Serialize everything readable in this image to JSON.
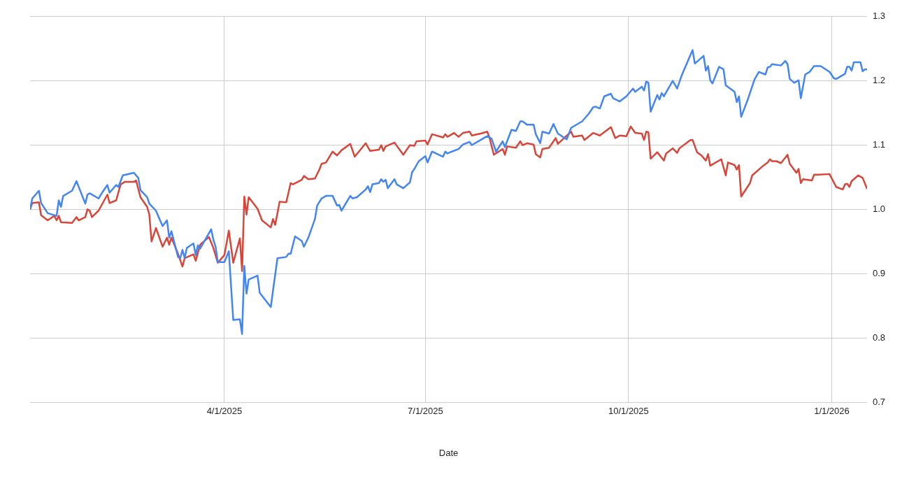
{
  "chart_data": {
    "type": "line",
    "xlabel": "Date",
    "xlim": [
      "2025-01-03",
      "2026-01-17"
    ],
    "xticks": [
      {
        "value": "2025-04-01",
        "label": "4/1/2025"
      },
      {
        "value": "2025-07-01",
        "label": "7/1/2025"
      },
      {
        "value": "2025-10-01",
        "label": "10/1/2025"
      },
      {
        "value": "2026-01-01",
        "label": "1/1/2026"
      }
    ],
    "ylim": [
      0.7,
      1.3
    ],
    "yticks": [
      0.7,
      0.8,
      0.9,
      {
        "value": 1.0,
        "label": "1.0"
      },
      1.1,
      1.2,
      1.3
    ],
    "grid": true,
    "legend": false,
    "marker": "none",
    "series": [
      {
        "color": "#4285f4",
        "x": [
          "2025-01-03",
          "2025-01-04",
          "2025-01-07",
          "2025-01-08",
          "2025-01-11",
          "2025-01-15",
          "2025-01-16",
          "2025-01-17",
          "2025-01-18",
          "2025-01-22",
          "2025-01-24",
          "2025-01-28",
          "2025-01-29",
          "2025-01-30",
          "2025-02-03",
          "2025-02-05",
          "2025-02-07",
          "2025-02-08",
          "2025-02-11",
          "2025-02-12",
          "2025-02-14",
          "2025-02-19",
          "2025-02-21",
          "2025-02-22",
          "2025-02-25",
          "2025-02-26",
          "2025-03-01",
          "2025-03-04",
          "2025-03-06",
          "2025-03-07",
          "2025-03-08",
          "2025-03-11",
          "2025-03-12",
          "2025-03-13",
          "2025-03-14",
          "2025-03-15",
          "2025-03-18",
          "2025-03-19",
          "2025-03-20",
          "2025-03-21",
          "2025-03-26",
          "2025-03-27",
          "2025-03-28",
          "2025-03-29",
          "2025-04-01",
          "2025-04-03",
          "2025-04-05",
          "2025-04-08",
          "2025-04-09",
          "2025-04-10",
          "2025-04-11",
          "2025-04-12",
          "2025-04-16",
          "2025-04-17",
          "2025-04-22",
          "2025-04-25",
          "2025-04-29",
          "2025-04-30",
          "2025-05-01",
          "2025-05-03",
          "2025-05-06",
          "2025-05-07",
          "2025-05-09",
          "2025-05-12",
          "2025-05-13",
          "2025-05-15",
          "2025-05-17",
          "2025-05-20",
          "2025-05-22",
          "2025-05-23",
          "2025-05-24",
          "2025-05-28",
          "2025-05-29",
          "2025-05-31",
          "2025-06-04",
          "2025-06-05",
          "2025-06-06",
          "2025-06-07",
          "2025-06-10",
          "2025-06-11",
          "2025-06-12",
          "2025-06-13",
          "2025-06-14",
          "2025-06-17",
          "2025-06-18",
          "2025-06-21",
          "2025-06-24",
          "2025-06-25",
          "2025-06-26",
          "2025-06-28",
          "2025-07-01",
          "2025-07-02",
          "2025-07-04",
          "2025-07-09",
          "2025-07-10",
          "2025-07-11",
          "2025-07-13",
          "2025-07-16",
          "2025-07-18",
          "2025-07-21",
          "2025-07-22",
          "2025-07-26",
          "2025-07-29",
          "2025-07-31",
          "2025-08-02",
          "2025-08-05",
          "2025-08-06",
          "2025-08-09",
          "2025-08-11",
          "2025-08-13",
          "2025-08-14",
          "2025-08-16",
          "2025-08-19",
          "2025-08-20",
          "2025-08-22",
          "2025-08-23",
          "2025-08-26",
          "2025-08-28",
          "2025-08-30",
          "2025-09-03",
          "2025-09-05",
          "2025-09-10",
          "2025-09-13",
          "2025-09-15",
          "2025-09-16",
          "2025-09-18",
          "2025-09-20",
          "2025-09-23",
          "2025-09-24",
          "2025-09-27",
          "2025-09-30",
          "2025-10-03",
          "2025-10-04",
          "2025-10-07",
          "2025-10-08",
          "2025-10-09",
          "2025-10-10",
          "2025-10-11",
          "2025-10-14",
          "2025-10-15",
          "2025-10-16",
          "2025-10-17",
          "2025-10-21",
          "2025-10-23",
          "2025-10-25",
          "2025-10-30",
          "2025-10-31",
          "2025-11-04",
          "2025-11-05",
          "2025-11-06",
          "2025-11-07",
          "2025-11-08",
          "2025-11-11",
          "2025-11-13",
          "2025-11-14",
          "2025-11-18",
          "2025-11-19",
          "2025-11-20",
          "2025-11-21",
          "2025-11-24",
          "2025-11-27",
          "2025-11-29",
          "2025-12-02",
          "2025-12-03",
          "2025-12-04",
          "2025-12-05",
          "2025-12-09",
          "2025-12-11",
          "2025-12-12",
          "2025-12-13",
          "2025-12-15",
          "2025-12-17",
          "2025-12-18",
          "2025-12-20",
          "2025-12-22",
          "2025-12-24",
          "2025-12-27",
          "2025-12-31",
          "2026-01-02",
          "2026-01-03",
          "2026-01-07",
          "2026-01-08",
          "2026-01-09",
          "2026-01-10",
          "2026-01-11",
          "2026-01-14",
          "2026-01-15",
          "2026-01-16",
          "2026-01-17"
        ],
        "values": [
          1.0,
          1.017,
          1.029,
          1.01,
          0.994,
          0.99,
          1.014,
          1.004,
          1.021,
          1.029,
          1.044,
          1.009,
          1.023,
          1.025,
          1.017,
          1.028,
          1.038,
          1.026,
          1.038,
          1.035,
          1.053,
          1.057,
          1.049,
          1.03,
          1.019,
          1.009,
          0.998,
          0.974,
          0.983,
          0.956,
          0.966,
          0.926,
          0.924,
          0.937,
          0.924,
          0.94,
          0.947,
          0.929,
          0.944,
          0.939,
          0.969,
          0.953,
          0.942,
          0.918,
          0.918,
          0.935,
          0.828,
          0.829,
          0.806,
          0.912,
          0.869,
          0.891,
          0.897,
          0.87,
          0.848,
          0.924,
          0.926,
          0.931,
          0.931,
          0.958,
          0.951,
          0.942,
          0.956,
          0.985,
          1.006,
          1.017,
          1.021,
          1.021,
          1.006,
          1.007,
          0.998,
          1.021,
          1.017,
          1.019,
          1.031,
          1.036,
          1.027,
          1.039,
          1.041,
          1.047,
          1.043,
          1.046,
          1.033,
          1.047,
          1.039,
          1.033,
          1.042,
          1.058,
          1.063,
          1.075,
          1.083,
          1.073,
          1.09,
          1.082,
          1.09,
          1.087,
          1.09,
          1.094,
          1.101,
          1.105,
          1.1,
          1.108,
          1.114,
          1.11,
          1.09,
          1.106,
          1.097,
          1.124,
          1.122,
          1.137,
          1.137,
          1.132,
          1.132,
          1.117,
          1.103,
          1.121,
          1.118,
          1.133,
          1.118,
          1.109,
          1.127,
          1.137,
          1.149,
          1.159,
          1.16,
          1.157,
          1.176,
          1.18,
          1.173,
          1.168,
          1.176,
          1.188,
          1.183,
          1.191,
          1.185,
          1.199,
          1.197,
          1.152,
          1.178,
          1.171,
          1.181,
          1.176,
          1.2,
          1.188,
          1.208,
          1.248,
          1.227,
          1.239,
          1.216,
          1.223,
          1.201,
          1.196,
          1.222,
          1.218,
          1.193,
          1.183,
          1.167,
          1.176,
          1.144,
          1.171,
          1.202,
          1.214,
          1.21,
          1.221,
          1.222,
          1.226,
          1.224,
          1.231,
          1.226,
          1.203,
          1.197,
          1.201,
          1.173,
          1.21,
          1.214,
          1.223,
          1.223,
          1.214,
          1.204,
          1.203,
          1.211,
          1.222,
          1.222,
          1.216,
          1.229,
          1.229,
          1.215,
          1.218,
          1.218
        ]
      },
      {
        "color": "#db4437",
        "x": [
          "2025-01-03",
          "2025-01-04",
          "2025-01-07",
          "2025-01-08",
          "2025-01-11",
          "2025-01-14",
          "2025-01-15",
          "2025-01-16",
          "2025-01-17",
          "2025-01-22",
          "2025-01-24",
          "2025-01-25",
          "2025-01-28",
          "2025-01-29",
          "2025-01-30",
          "2025-01-31",
          "2025-02-03",
          "2025-02-07",
          "2025-02-08",
          "2025-02-11",
          "2025-02-13",
          "2025-02-15",
          "2025-02-19",
          "2025-02-20",
          "2025-02-22",
          "2025-02-25",
          "2025-02-26",
          "2025-02-27",
          "2025-03-01",
          "2025-03-04",
          "2025-03-06",
          "2025-03-07",
          "2025-03-08",
          "2025-03-11",
          "2025-03-13",
          "2025-03-14",
          "2025-03-18",
          "2025-03-19",
          "2025-03-21",
          "2025-03-25",
          "2025-03-27",
          "2025-03-29",
          "2025-04-01",
          "2025-04-03",
          "2025-04-05",
          "2025-04-08",
          "2025-04-09",
          "2025-04-10",
          "2025-04-11",
          "2025-04-12",
          "2025-04-16",
          "2025-04-18",
          "2025-04-22",
          "2025-04-23",
          "2025-04-24",
          "2025-04-26",
          "2025-04-29",
          "2025-05-01",
          "2025-05-02",
          "2025-05-06",
          "2025-05-07",
          "2025-05-09",
          "2025-05-12",
          "2025-05-14",
          "2025-05-15",
          "2025-05-17",
          "2025-05-20",
          "2025-05-22",
          "2025-05-24",
          "2025-05-28",
          "2025-05-30",
          "2025-06-04",
          "2025-06-06",
          "2025-06-10",
          "2025-06-11",
          "2025-06-12",
          "2025-06-13",
          "2025-06-17",
          "2025-06-21",
          "2025-06-24",
          "2025-06-26",
          "2025-06-27",
          "2025-07-01",
          "2025-07-02",
          "2025-07-04",
          "2025-07-09",
          "2025-07-10",
          "2025-07-11",
          "2025-07-14",
          "2025-07-16",
          "2025-07-18",
          "2025-07-21",
          "2025-07-22",
          "2025-07-26",
          "2025-07-29",
          "2025-07-30",
          "2025-08-01",
          "2025-08-05",
          "2025-08-06",
          "2025-08-07",
          "2025-08-11",
          "2025-08-13",
          "2025-08-14",
          "2025-08-16",
          "2025-08-19",
          "2025-08-20",
          "2025-08-22",
          "2025-08-23",
          "2025-08-26",
          "2025-08-29",
          "2025-08-30",
          "2025-09-05",
          "2025-09-06",
          "2025-09-10",
          "2025-09-11",
          "2025-09-15",
          "2025-09-18",
          "2025-09-23",
          "2025-09-25",
          "2025-09-27",
          "2025-09-30",
          "2025-10-02",
          "2025-10-04",
          "2025-10-07",
          "2025-10-08",
          "2025-10-09",
          "2025-10-10",
          "2025-10-11",
          "2025-10-14",
          "2025-10-17",
          "2025-10-18",
          "2025-10-21",
          "2025-10-23",
          "2025-10-24",
          "2025-10-29",
          "2025-10-30",
          "2025-11-01",
          "2025-11-03",
          "2025-11-05",
          "2025-11-06",
          "2025-11-07",
          "2025-11-12",
          "2025-11-14",
          "2025-11-15",
          "2025-11-18",
          "2025-11-19",
          "2025-11-20",
          "2025-11-21",
          "2025-11-25",
          "2025-11-26",
          "2025-12-01",
          "2025-12-03",
          "2025-12-04",
          "2025-12-05",
          "2025-12-07",
          "2025-12-09",
          "2025-12-12",
          "2025-12-13",
          "2025-12-16",
          "2025-12-17",
          "2025-12-18",
          "2025-12-19",
          "2025-12-23",
          "2025-12-24",
          "2025-12-26",
          "2025-12-31",
          "2026-01-03",
          "2026-01-06",
          "2026-01-07",
          "2026-01-08",
          "2026-01-09",
          "2026-01-10",
          "2026-01-13",
          "2026-01-15",
          "2026-01-17"
        ],
        "values": [
          1.0,
          1.01,
          1.011,
          0.991,
          0.983,
          0.99,
          0.983,
          0.99,
          0.98,
          0.979,
          0.988,
          0.983,
          0.988,
          1.0,
          0.998,
          0.988,
          0.998,
          1.023,
          1.01,
          1.014,
          1.039,
          1.043,
          1.043,
          1.045,
          1.019,
          1.004,
          0.992,
          0.95,
          0.971,
          0.942,
          0.956,
          0.945,
          0.956,
          0.931,
          0.911,
          0.924,
          0.93,
          0.92,
          0.945,
          0.957,
          0.94,
          0.917,
          0.929,
          0.967,
          0.917,
          0.955,
          0.904,
          1.02,
          0.992,
          1.019,
          1.001,
          0.983,
          0.972,
          0.985,
          0.976,
          1.012,
          1.011,
          1.041,
          1.039,
          1.046,
          1.052,
          1.047,
          1.048,
          1.062,
          1.071,
          1.073,
          1.09,
          1.084,
          1.092,
          1.102,
          1.082,
          1.103,
          1.091,
          1.093,
          1.1,
          1.091,
          1.098,
          1.104,
          1.085,
          1.1,
          1.099,
          1.106,
          1.107,
          1.101,
          1.117,
          1.112,
          1.117,
          1.113,
          1.119,
          1.113,
          1.119,
          1.121,
          1.115,
          1.118,
          1.121,
          1.112,
          1.085,
          1.094,
          1.085,
          1.098,
          1.096,
          1.106,
          1.1,
          1.103,
          1.101,
          1.086,
          1.081,
          1.094,
          1.096,
          1.111,
          1.102,
          1.121,
          1.113,
          1.115,
          1.108,
          1.119,
          1.115,
          1.128,
          1.111,
          1.115,
          1.114,
          1.129,
          1.119,
          1.118,
          1.108,
          1.121,
          1.12,
          1.079,
          1.089,
          1.076,
          1.087,
          1.095,
          1.088,
          1.095,
          1.108,
          1.108,
          1.089,
          1.084,
          1.076,
          1.086,
          1.068,
          1.078,
          1.053,
          1.073,
          1.069,
          1.062,
          1.069,
          1.02,
          1.041,
          1.053,
          1.068,
          1.073,
          1.078,
          1.075,
          1.075,
          1.072,
          1.085,
          1.071,
          1.057,
          1.063,
          1.041,
          1.047,
          1.045,
          1.054,
          1.054,
          1.055,
          1.035,
          1.031,
          1.039,
          1.04,
          1.035,
          1.044,
          1.053,
          1.049,
          1.032
        ]
      }
    ]
  }
}
